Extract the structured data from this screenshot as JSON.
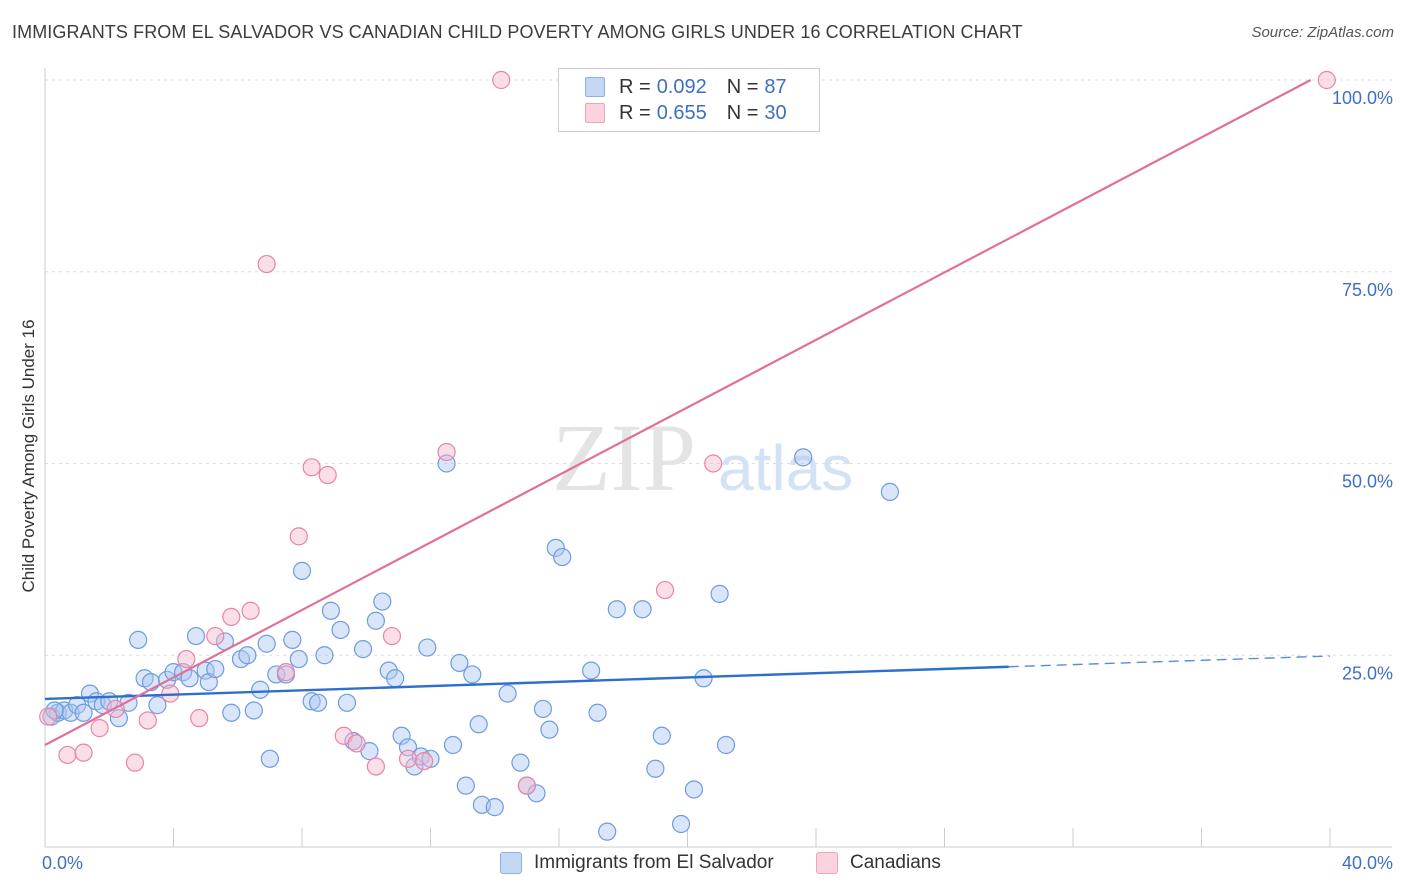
{
  "title": "IMMIGRANTS FROM EL SALVADOR VS CANADIAN CHILD POVERTY AMONG GIRLS UNDER 16 CORRELATION CHART",
  "source": "Source: ZipAtlas.com",
  "watermark": {
    "zip": "ZIP",
    "atlas": "atlas"
  },
  "legend": {
    "rows": [
      {
        "r_label": "R = ",
        "r": "0.092",
        "n_label": "N = ",
        "n": "87",
        "color": "#aac6f0"
      },
      {
        "r_label": "R = ",
        "r": "0.655",
        "n_label": "N = ",
        "n": "30",
        "color": "#f7b8cb"
      }
    ]
  },
  "bottom_legend": [
    {
      "label": "Immigrants from El Salvador",
      "color": "#aac6f0"
    },
    {
      "label": "Canadians",
      "color": "#f7b8cb"
    }
  ],
  "chart_data": {
    "type": "scatter",
    "title": "IMMIGRANTS FROM EL SALVADOR VS CANADIAN CHILD POVERTY AMONG GIRLS UNDER 16 CORRELATION CHART",
    "xlabel": "",
    "ylabel": "Child Poverty Among Girls Under 16",
    "xlim": [
      0,
      40
    ],
    "ylim": [
      0,
      100
    ],
    "x_tick_labels": [
      "0.0%",
      "40.0%"
    ],
    "y_tick_labels": [
      "100.0%",
      "75.0%",
      "50.0%",
      "25.0%"
    ],
    "y_ticks": [
      100,
      75,
      50,
      25
    ],
    "grid": true,
    "legend_position": "top-center",
    "series": [
      {
        "name": "Immigrants from El Salvador",
        "color": "#6f9be0",
        "fill": "#aac6f0",
        "points": [
          [
            0.2,
            17.0
          ],
          [
            0.4,
            17.5
          ],
          [
            0.6,
            17.8
          ],
          [
            0.8,
            17.5
          ],
          [
            1.0,
            18.5
          ],
          [
            1.2,
            17.5
          ],
          [
            1.4,
            20.0
          ],
          [
            1.6,
            19.0
          ],
          [
            1.8,
            18.5
          ],
          [
            2.0,
            19.0
          ],
          [
            2.3,
            16.8
          ],
          [
            2.6,
            18.8
          ],
          [
            2.9,
            27.0
          ],
          [
            3.1,
            22.0
          ],
          [
            3.3,
            21.5
          ],
          [
            3.5,
            18.5
          ],
          [
            3.8,
            21.8
          ],
          [
            4.0,
            22.8
          ],
          [
            4.3,
            22.8
          ],
          [
            4.5,
            22.0
          ],
          [
            4.7,
            27.5
          ],
          [
            5.0,
            23.0
          ],
          [
            5.1,
            21.5
          ],
          [
            5.3,
            23.2
          ],
          [
            5.6,
            26.8
          ],
          [
            5.8,
            17.5
          ],
          [
            6.1,
            24.5
          ],
          [
            6.3,
            25.0
          ],
          [
            6.5,
            17.8
          ],
          [
            6.7,
            20.5
          ],
          [
            6.9,
            26.5
          ],
          [
            7.0,
            11.5
          ],
          [
            7.2,
            22.5
          ],
          [
            7.5,
            22.5
          ],
          [
            7.7,
            27.0
          ],
          [
            7.9,
            24.5
          ],
          [
            8.0,
            36.0
          ],
          [
            8.3,
            19.0
          ],
          [
            8.5,
            18.8
          ],
          [
            8.7,
            25.0
          ],
          [
            8.9,
            30.8
          ],
          [
            9.2,
            28.3
          ],
          [
            9.4,
            18.8
          ],
          [
            9.6,
            13.8
          ],
          [
            9.9,
            25.8
          ],
          [
            10.1,
            12.5
          ],
          [
            10.3,
            29.5
          ],
          [
            10.5,
            32.0
          ],
          [
            10.7,
            23.0
          ],
          [
            10.9,
            22.0
          ],
          [
            11.1,
            14.5
          ],
          [
            11.3,
            13.0
          ],
          [
            11.5,
            10.5
          ],
          [
            11.7,
            11.8
          ],
          [
            11.9,
            26.0
          ],
          [
            12.0,
            11.5
          ],
          [
            12.5,
            50.0
          ],
          [
            12.7,
            13.3
          ],
          [
            12.9,
            24.0
          ],
          [
            13.1,
            8.0
          ],
          [
            13.3,
            22.5
          ],
          [
            13.5,
            16.0
          ],
          [
            13.6,
            5.5
          ],
          [
            14.0,
            5.2
          ],
          [
            14.4,
            20.0
          ],
          [
            14.8,
            11.0
          ],
          [
            15.0,
            8.0
          ],
          [
            15.3,
            7.0
          ],
          [
            15.5,
            18.0
          ],
          [
            15.7,
            15.3
          ],
          [
            15.9,
            39.0
          ],
          [
            16.1,
            37.8
          ],
          [
            17.0,
            23.0
          ],
          [
            17.2,
            17.5
          ],
          [
            17.8,
            31.0
          ],
          [
            18.6,
            31.0
          ],
          [
            19.0,
            10.2
          ],
          [
            19.2,
            14.5
          ],
          [
            19.8,
            3.0
          ],
          [
            20.2,
            7.5
          ],
          [
            20.5,
            22.0
          ],
          [
            21.0,
            33.0
          ],
          [
            21.2,
            13.3
          ],
          [
            23.6,
            50.8
          ],
          [
            26.3,
            46.3
          ],
          [
            17.5,
            2.0
          ],
          [
            0.3,
            17.8
          ]
        ]
      },
      {
        "name": "Canadians",
        "color": "#e884a5",
        "fill": "#f7b8cb",
        "points": [
          [
            0.1,
            17.0
          ],
          [
            0.7,
            12.0
          ],
          [
            1.2,
            12.3
          ],
          [
            1.7,
            15.5
          ],
          [
            2.2,
            18.0
          ],
          [
            2.8,
            11.0
          ],
          [
            3.2,
            16.5
          ],
          [
            3.9,
            20.0
          ],
          [
            4.4,
            24.5
          ],
          [
            4.8,
            16.8
          ],
          [
            5.3,
            27.5
          ],
          [
            5.8,
            30.0
          ],
          [
            6.4,
            30.8
          ],
          [
            6.9,
            76.0
          ],
          [
            7.5,
            22.8
          ],
          [
            7.9,
            40.5
          ],
          [
            8.3,
            49.5
          ],
          [
            8.8,
            48.5
          ],
          [
            9.3,
            14.5
          ],
          [
            9.7,
            13.5
          ],
          [
            10.3,
            10.5
          ],
          [
            10.8,
            27.5
          ],
          [
            11.3,
            11.5
          ],
          [
            11.8,
            11.2
          ],
          [
            12.5,
            51.5
          ],
          [
            14.2,
            100.0
          ],
          [
            15.0,
            8.0
          ],
          [
            19.3,
            33.5
          ],
          [
            20.8,
            50.0
          ],
          [
            39.9,
            100.0
          ]
        ]
      }
    ],
    "trend_lines": [
      {
        "series": "Immigrants from El Salvador",
        "x_solid": [
          0,
          30
        ],
        "y_solid": [
          19.3,
          23.5
        ],
        "x_dashed": [
          30,
          40
        ],
        "y_dashed": [
          23.5,
          24.9
        ]
      },
      {
        "series": "Canadians",
        "x": [
          0,
          39.4
        ],
        "y": [
          13.3,
          100.0
        ]
      }
    ]
  }
}
